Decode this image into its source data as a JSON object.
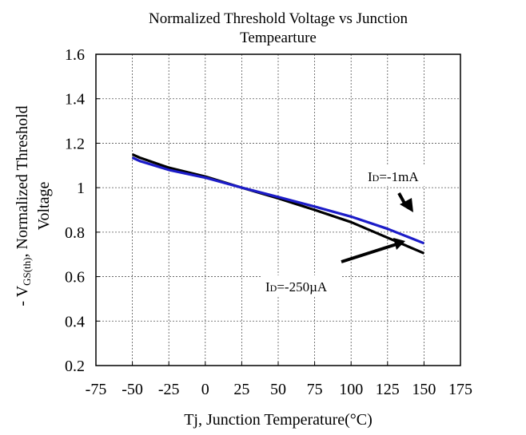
{
  "chart_data": {
    "type": "line",
    "title_lines": [
      "Normalized Threshold Voltage vs Junction",
      "Tempearture"
    ],
    "xlabel": "Tj, Junction Temperature(°C)",
    "ylabel_line1_prefix": "- V",
    "ylabel_line1_sub": "GS(th)",
    "ylabel_line1_suffix": ", Normalized Threshold",
    "ylabel_line2": "Voltage",
    "xlim": [
      -75,
      175
    ],
    "ylim": [
      0.2,
      1.6
    ],
    "xticks": [
      -75,
      -50,
      -25,
      0,
      25,
      50,
      75,
      100,
      125,
      150,
      175
    ],
    "xtick_labels": [
      "-75",
      "-50",
      "-25",
      "0",
      "25",
      "50",
      "75",
      "100",
      "125",
      "150",
      "175"
    ],
    "yticks": [
      0.2,
      0.4,
      0.6,
      0.8,
      1.0,
      1.2,
      1.4,
      1.6
    ],
    "ytick_labels": [
      "0.2",
      "0.4",
      "0.6",
      "0.8",
      "1",
      "1.2",
      "1.4",
      "1.6"
    ],
    "grid": true,
    "series": [
      {
        "name": "ID=-250µA",
        "color": "#000000",
        "x": [
          -50,
          -45,
          -25,
          0,
          25,
          50,
          75,
          100,
          125,
          150
        ],
        "y": [
          1.15,
          1.135,
          1.09,
          1.05,
          1.0,
          0.952,
          0.9,
          0.845,
          0.775,
          0.705
        ]
      },
      {
        "name": "ID=-1mA",
        "color": "#1c1cc8",
        "x": [
          -50,
          -45,
          -25,
          0,
          25,
          50,
          75,
          100,
          125,
          150
        ],
        "y": [
          1.135,
          1.12,
          1.08,
          1.045,
          1.0,
          0.958,
          0.915,
          0.87,
          0.815,
          0.75
        ]
      }
    ],
    "annotations": [
      {
        "main": "I",
        "sub": "D",
        "rest": "=-1mA"
      },
      {
        "main": "I",
        "sub": "D",
        "rest": "=-250µA"
      }
    ]
  }
}
